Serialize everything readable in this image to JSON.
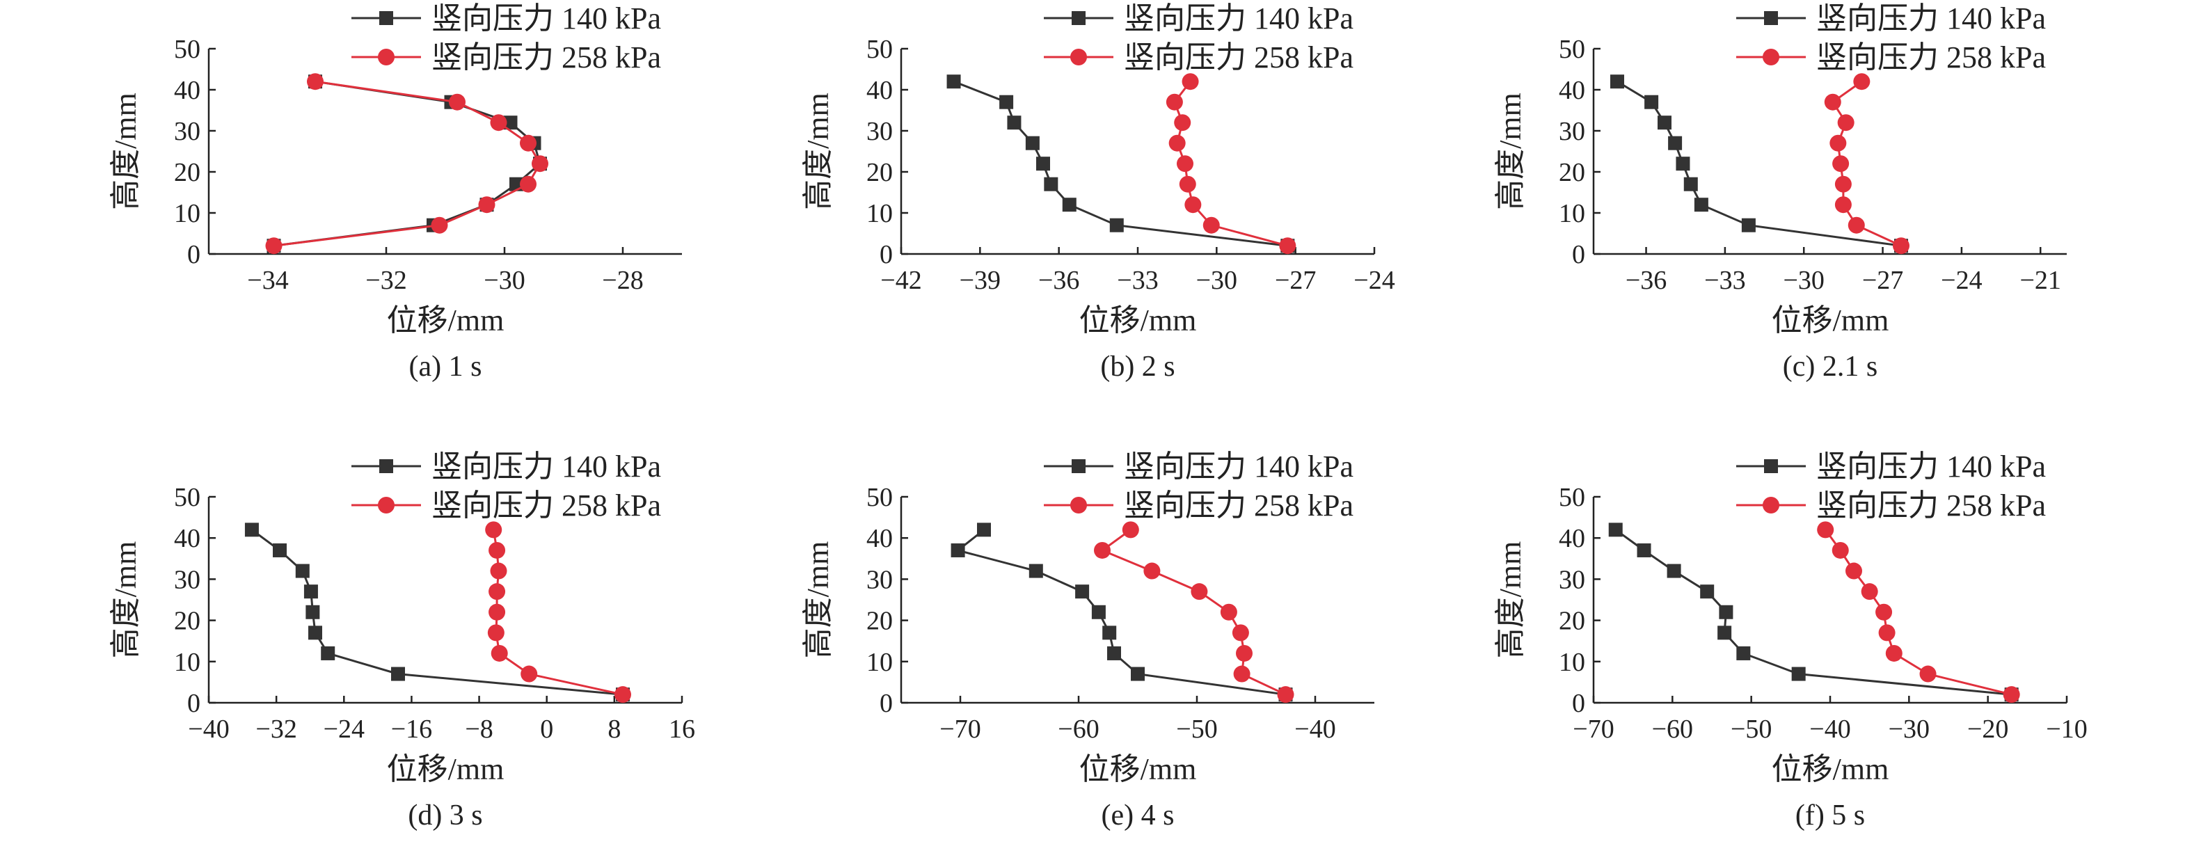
{
  "figure": {
    "background": "#ffffff",
    "axis_color": "#222222"
  },
  "chart_data": [
    {
      "type": "line",
      "caption": "(a) 1 s",
      "xlabel": "位移/mm",
      "ylabel": "高度/mm",
      "xlim": [
        -35,
        -27
      ],
      "xticks": [
        -34,
        -32,
        -30,
        -28
      ],
      "ylim": [
        0,
        50
      ],
      "yticks": [
        0,
        10,
        20,
        30,
        40,
        50
      ],
      "grid": false,
      "legend": "top",
      "series": [
        {
          "name": "竖向压力 140 kPa",
          "color": "#333333",
          "marker": "square",
          "x": [
            -33.2,
            -30.9,
            -29.9,
            -29.5,
            -29.4,
            -29.8,
            -30.3,
            -31.2,
            -33.9
          ],
          "y": [
            42,
            37,
            32,
            27,
            22,
            17,
            12,
            7,
            2
          ]
        },
        {
          "name": "竖向压力 258 kPa",
          "color": "#e0303c",
          "marker": "circle",
          "x": [
            -33.2,
            -30.8,
            -30.1,
            -29.6,
            -29.4,
            -29.6,
            -30.3,
            -31.1,
            -33.9
          ],
          "y": [
            42,
            37,
            32,
            27,
            22,
            17,
            12,
            7,
            2
          ]
        }
      ]
    },
    {
      "type": "line",
      "caption": "(b) 2 s",
      "xlabel": "位移/mm",
      "ylabel": "高度/mm",
      "xlim": [
        -42,
        -24
      ],
      "xticks": [
        -42,
        -39,
        -36,
        -33,
        -30,
        -27,
        -24
      ],
      "ylim": [
        0,
        50
      ],
      "yticks": [
        0,
        10,
        20,
        30,
        40,
        50
      ],
      "grid": false,
      "legend": "top",
      "series": [
        {
          "name": "竖向压力 140 kPa",
          "color": "#333333",
          "marker": "square",
          "x": [
            -40.0,
            -38.0,
            -37.7,
            -37.0,
            -36.6,
            -36.3,
            -35.6,
            -33.8,
            -27.3
          ],
          "y": [
            42,
            37,
            32,
            27,
            22,
            17,
            12,
            7,
            2
          ]
        },
        {
          "name": "竖向压力 258 kPa",
          "color": "#e0303c",
          "marker": "circle",
          "x": [
            -31.0,
            -31.6,
            -31.3,
            -31.5,
            -31.2,
            -31.1,
            -30.9,
            -30.2,
            -27.3
          ],
          "y": [
            42,
            37,
            32,
            27,
            22,
            17,
            12,
            7,
            2
          ]
        }
      ]
    },
    {
      "type": "line",
      "caption": "(c) 2.1 s",
      "xlabel": "位移/mm",
      "ylabel": "高度/mm",
      "xlim": [
        -38,
        -20
      ],
      "xticks": [
        -36,
        -33,
        -30,
        -27,
        -24,
        -21
      ],
      "ylim": [
        0,
        50
      ],
      "yticks": [
        0,
        10,
        20,
        30,
        40,
        50
      ],
      "grid": false,
      "legend": "top",
      "series": [
        {
          "name": "竖向压力 140 kPa",
          "color": "#333333",
          "marker": "square",
          "x": [
            -37.1,
            -35.8,
            -35.3,
            -34.9,
            -34.6,
            -34.3,
            -33.9,
            -32.1,
            -26.3
          ],
          "y": [
            42,
            37,
            32,
            27,
            22,
            17,
            12,
            7,
            2
          ]
        },
        {
          "name": "竖向压力 258 kPa",
          "color": "#e0303c",
          "marker": "circle",
          "x": [
            -27.8,
            -28.9,
            -28.4,
            -28.7,
            -28.6,
            -28.5,
            -28.5,
            -28.0,
            -26.3
          ],
          "y": [
            42,
            37,
            32,
            27,
            22,
            17,
            12,
            7,
            2
          ]
        }
      ]
    },
    {
      "type": "line",
      "caption": "(d) 3 s",
      "xlabel": "位移/mm",
      "ylabel": "高度/mm",
      "xlim": [
        -40,
        16
      ],
      "xticks": [
        -40,
        -32,
        -24,
        -16,
        -8,
        0,
        8,
        16
      ],
      "ylim": [
        0,
        50
      ],
      "yticks": [
        0,
        10,
        20,
        30,
        40,
        50
      ],
      "grid": false,
      "legend": "top",
      "series": [
        {
          "name": "竖向压力 140 kPa",
          "color": "#333333",
          "marker": "square",
          "x": [
            -34.9,
            -31.6,
            -28.9,
            -27.9,
            -27.7,
            -27.4,
            -25.9,
            -17.6,
            9.0
          ],
          "y": [
            42,
            37,
            32,
            27,
            22,
            17,
            12,
            7,
            2
          ]
        },
        {
          "name": "竖向压力 258 kPa",
          "color": "#e0303c",
          "marker": "circle",
          "x": [
            -6.3,
            -5.9,
            -5.7,
            -5.9,
            -5.9,
            -6.0,
            -5.6,
            -2.1,
            9.0
          ],
          "y": [
            42,
            37,
            32,
            27,
            22,
            17,
            12,
            7,
            2
          ]
        }
      ]
    },
    {
      "type": "line",
      "caption": "(e) 4 s",
      "xlabel": "位移/mm",
      "ylabel": "高度/mm",
      "xlim": [
        -75,
        -35
      ],
      "xticks": [
        -70,
        -60,
        -50,
        -40
      ],
      "ylim": [
        0,
        50
      ],
      "yticks": [
        0,
        10,
        20,
        30,
        40,
        50
      ],
      "grid": false,
      "legend": "top",
      "series": [
        {
          "name": "竖向压力 140 kPa",
          "color": "#333333",
          "marker": "square",
          "x": [
            -68.0,
            -70.2,
            -63.6,
            -59.7,
            -58.3,
            -57.4,
            -57.0,
            -55.0,
            -42.5
          ],
          "y": [
            42,
            37,
            32,
            27,
            22,
            17,
            12,
            7,
            2
          ]
        },
        {
          "name": "竖向压力 258 kPa",
          "color": "#e0303c",
          "marker": "circle",
          "x": [
            -55.6,
            -58.0,
            -53.8,
            -49.8,
            -47.3,
            -46.3,
            -46.0,
            -46.2,
            -42.5
          ],
          "y": [
            42,
            37,
            32,
            27,
            22,
            17,
            12,
            7,
            2
          ]
        }
      ]
    },
    {
      "type": "line",
      "caption": "(f) 5 s",
      "xlabel": "位移/mm",
      "ylabel": "高度/mm",
      "xlim": [
        -70,
        -10
      ],
      "xticks": [
        -70,
        -60,
        -50,
        -40,
        -30,
        -20,
        -10
      ],
      "ylim": [
        0,
        50
      ],
      "yticks": [
        0,
        10,
        20,
        30,
        40,
        50
      ],
      "grid": false,
      "legend": "top",
      "series": [
        {
          "name": "竖向压力 140 kPa",
          "color": "#333333",
          "marker": "square",
          "x": [
            -67.2,
            -63.6,
            -59.8,
            -55.6,
            -53.2,
            -53.4,
            -51.0,
            -44.0,
            -17.0
          ],
          "y": [
            42,
            37,
            32,
            27,
            22,
            17,
            12,
            7,
            2
          ]
        },
        {
          "name": "竖向压力 258 kPa",
          "color": "#e0303c",
          "marker": "circle",
          "x": [
            -40.6,
            -38.7,
            -37.0,
            -35.0,
            -33.2,
            -32.8,
            -31.9,
            -27.6,
            -17.0
          ],
          "y": [
            42,
            37,
            32,
            27,
            22,
            17,
            12,
            7,
            2
          ]
        }
      ]
    }
  ]
}
